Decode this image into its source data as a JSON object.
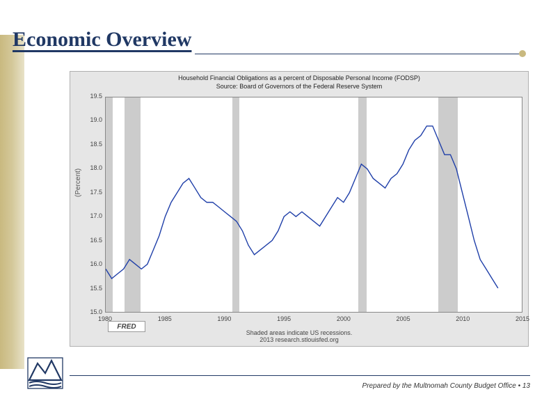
{
  "page": {
    "title": "Economic Overview",
    "title_color": "#203864",
    "sidebar_gradient": [
      "#c9b97f",
      "#e8e2c8"
    ],
    "accent_dot_color": "#c9b97f"
  },
  "chart": {
    "type": "line",
    "title_line1": "Household Financial Obligations as a percent of Disposable Personal Income (FODSP)",
    "title_line2": "Source: Board of Governors of the Federal Reserve System",
    "title_fontsize": 9,
    "y_label": "(Percent)",
    "label_fontsize": 10,
    "background_color": "#e6e6e6",
    "plot_background": "#ffffff",
    "border_color": "#888888",
    "line_color": "#1e3ea8",
    "line_width": 1.4,
    "recession_color": "#cccccc",
    "xlim": [
      1980,
      2015
    ],
    "ylim": [
      15.0,
      19.5
    ],
    "ytick_step": 0.5,
    "xtick_step": 5,
    "y_ticks": [
      "19.5",
      "19.0",
      "18.5",
      "18.0",
      "17.5",
      "17.0",
      "16.5",
      "16.0",
      "15.5",
      "15.0"
    ],
    "x_ticks": [
      "1980",
      "1985",
      "1990",
      "1995",
      "2000",
      "2005",
      "2010",
      "2015"
    ],
    "recessions": [
      {
        "start": 1980.0,
        "end": 1980.6
      },
      {
        "start": 1981.6,
        "end": 1982.9
      },
      {
        "start": 1990.6,
        "end": 1991.2
      },
      {
        "start": 2001.2,
        "end": 2001.9
      },
      {
        "start": 2007.9,
        "end": 2009.5
      }
    ],
    "series": [
      {
        "x": 1980.0,
        "y": 15.9
      },
      {
        "x": 1980.5,
        "y": 15.7
      },
      {
        "x": 1981.0,
        "y": 15.8
      },
      {
        "x": 1981.5,
        "y": 15.9
      },
      {
        "x": 1982.0,
        "y": 16.1
      },
      {
        "x": 1982.5,
        "y": 16.0
      },
      {
        "x": 1983.0,
        "y": 15.9
      },
      {
        "x": 1983.5,
        "y": 16.0
      },
      {
        "x": 1984.0,
        "y": 16.3
      },
      {
        "x": 1984.5,
        "y": 16.6
      },
      {
        "x": 1985.0,
        "y": 17.0
      },
      {
        "x": 1985.5,
        "y": 17.3
      },
      {
        "x": 1986.0,
        "y": 17.5
      },
      {
        "x": 1986.5,
        "y": 17.7
      },
      {
        "x": 1987.0,
        "y": 17.8
      },
      {
        "x": 1987.5,
        "y": 17.6
      },
      {
        "x": 1988.0,
        "y": 17.4
      },
      {
        "x": 1988.5,
        "y": 17.3
      },
      {
        "x": 1989.0,
        "y": 17.3
      },
      {
        "x": 1989.5,
        "y": 17.2
      },
      {
        "x": 1990.0,
        "y": 17.1
      },
      {
        "x": 1990.5,
        "y": 17.0
      },
      {
        "x": 1991.0,
        "y": 16.9
      },
      {
        "x": 1991.5,
        "y": 16.7
      },
      {
        "x": 1992.0,
        "y": 16.4
      },
      {
        "x": 1992.5,
        "y": 16.2
      },
      {
        "x": 1993.0,
        "y": 16.3
      },
      {
        "x": 1993.5,
        "y": 16.4
      },
      {
        "x": 1994.0,
        "y": 16.5
      },
      {
        "x": 1994.5,
        "y": 16.7
      },
      {
        "x": 1995.0,
        "y": 17.0
      },
      {
        "x": 1995.5,
        "y": 17.1
      },
      {
        "x": 1996.0,
        "y": 17.0
      },
      {
        "x": 1996.5,
        "y": 17.1
      },
      {
        "x": 1997.0,
        "y": 17.0
      },
      {
        "x": 1997.5,
        "y": 16.9
      },
      {
        "x": 1998.0,
        "y": 16.8
      },
      {
        "x": 1998.5,
        "y": 17.0
      },
      {
        "x": 1999.0,
        "y": 17.2
      },
      {
        "x": 1999.5,
        "y": 17.4
      },
      {
        "x": 2000.0,
        "y": 17.3
      },
      {
        "x": 2000.5,
        "y": 17.5
      },
      {
        "x": 2001.0,
        "y": 17.8
      },
      {
        "x": 2001.5,
        "y": 18.1
      },
      {
        "x": 2002.0,
        "y": 18.0
      },
      {
        "x": 2002.5,
        "y": 17.8
      },
      {
        "x": 2003.0,
        "y": 17.7
      },
      {
        "x": 2003.5,
        "y": 17.6
      },
      {
        "x": 2004.0,
        "y": 17.8
      },
      {
        "x": 2004.5,
        "y": 17.9
      },
      {
        "x": 2005.0,
        "y": 18.1
      },
      {
        "x": 2005.5,
        "y": 18.4
      },
      {
        "x": 2006.0,
        "y": 18.6
      },
      {
        "x": 2006.5,
        "y": 18.7
      },
      {
        "x": 2007.0,
        "y": 18.9
      },
      {
        "x": 2007.5,
        "y": 18.9
      },
      {
        "x": 2008.0,
        "y": 18.6
      },
      {
        "x": 2008.5,
        "y": 18.3
      },
      {
        "x": 2009.0,
        "y": 18.3
      },
      {
        "x": 2009.5,
        "y": 18.0
      },
      {
        "x": 2010.0,
        "y": 17.5
      },
      {
        "x": 2010.5,
        "y": 17.0
      },
      {
        "x": 2011.0,
        "y": 16.5
      },
      {
        "x": 2011.5,
        "y": 16.1
      },
      {
        "x": 2012.0,
        "y": 15.9
      },
      {
        "x": 2012.5,
        "y": 15.7
      },
      {
        "x": 2013.0,
        "y": 15.5
      }
    ],
    "footer_line1": "Shaded areas indicate US recessions.",
    "footer_line2": "2013 research.stlouisfed.org",
    "fred_label": "FRED"
  },
  "footer": {
    "text": "Prepared by the Multnomah County Budget Office",
    "bullet": "•",
    "page_number": "13",
    "rule_color": "#203864"
  },
  "logo": {
    "stroke": "#203864",
    "fill": "#ffffff"
  }
}
